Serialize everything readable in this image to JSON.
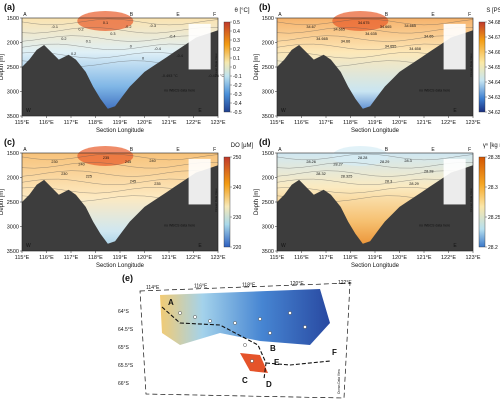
{
  "chart_data": [
    {
      "type": "heatmap",
      "panel_label": "(a)",
      "colorbar_title": "θ [°C]",
      "colorbar_ticks": [
        "0.5",
        "0.4",
        "0.3",
        "0.2",
        "0.1",
        "0",
        "-0.1",
        "-0.2",
        "-0.3",
        "-0.4",
        "-0.5"
      ],
      "colorbar_range": [
        -0.5,
        0.5
      ],
      "ylabel": "Depth [m]",
      "xlabel": "Section Longitude",
      "x_ticks": [
        "115°E",
        "116°E",
        "117°E",
        "118°E",
        "119°E",
        "120°E",
        "121°E",
        "122°E",
        "123°E"
      ],
      "y_ticks": [
        "1500",
        "2000",
        "2500",
        "3000",
        "3500"
      ],
      "section_letters": [
        "A",
        "B",
        "E",
        "F"
      ],
      "corner_labels": [
        "W",
        "E"
      ],
      "contour_labels": [
        "-0.1",
        "0.2",
        "0.1",
        "-0.2",
        "-0.3",
        "0.2",
        "0.1",
        "0",
        "-0.4",
        "-0.4",
        "0.3",
        "0",
        "-0.4",
        "0.2",
        "-0.493 °C",
        "-0.476 °C"
      ],
      "note": "no WBCS data here",
      "watermark": "Ocean Data View"
    },
    {
      "type": "heatmap",
      "panel_label": "(b)",
      "colorbar_title": "S [PSU]",
      "colorbar_ticks": [
        "34.68",
        "34.67",
        "34.66",
        "34.65",
        "34.64",
        "34.63",
        "34.62"
      ],
      "colorbar_range": [
        34.62,
        34.68
      ],
      "ylabel": "Depth [m]",
      "xlabel": "Section Longitude",
      "x_ticks": [
        "115°E",
        "116°E",
        "117°E",
        "118°E",
        "119°E",
        "120°E",
        "121°E",
        "122°E",
        "123°E"
      ],
      "y_ticks": [
        "1500",
        "2000",
        "2500",
        "3000",
        "3500"
      ],
      "section_letters": [
        "A",
        "B",
        "E",
        "F"
      ],
      "corner_labels": [
        "W",
        "E"
      ],
      "contour_labels": [
        "34.67",
        "34.665",
        "34.675",
        "34.665",
        "34.665",
        "34.665",
        "34.66",
        "34.655",
        "34.658",
        "34.65",
        "34.635"
      ],
      "note": "no WBCS data here",
      "watermark": "Ocean Data View"
    },
    {
      "type": "heatmap",
      "panel_label": "(c)",
      "colorbar_title": "DO [μM]",
      "colorbar_ticks": [
        "250",
        "240",
        "230",
        "220"
      ],
      "colorbar_range": [
        220,
        250
      ],
      "ylabel": "Depth [m]",
      "xlabel": "Section Longitude",
      "x_ticks": [
        "115°E",
        "116°E",
        "117°E",
        "118°E",
        "119°E",
        "120°E",
        "121°E",
        "122°E",
        "123°E"
      ],
      "y_ticks": [
        "1500",
        "2000",
        "2500",
        "3000",
        "3500"
      ],
      "section_letters": [
        "A",
        "B",
        "E",
        "F"
      ],
      "corner_labels": [
        "W",
        "E"
      ],
      "contour_labels": [
        "230",
        "240",
        "235",
        "245",
        "240",
        "230",
        "225",
        "245",
        "235"
      ],
      "note": "no WBCS data here",
      "watermark": "Ocean Data View"
    },
    {
      "type": "heatmap",
      "panel_label": "(d)",
      "colorbar_title": "γⁿ [kg m⁻³]",
      "colorbar_ticks": [
        "28.35",
        "28.3",
        "28.25",
        "28.2"
      ],
      "colorbar_range": [
        28.2,
        28.35
      ],
      "ylabel": "Depth [m]",
      "xlabel": "Section Longitude",
      "x_ticks": [
        "115°E",
        "116°E",
        "117°E",
        "118°E",
        "119°E",
        "120°E",
        "121°E",
        "122°E",
        "123°E"
      ],
      "y_ticks": [
        "1500",
        "2000",
        "2500",
        "3000",
        "3500"
      ],
      "section_letters": [
        "A",
        "B",
        "E",
        "F"
      ],
      "corner_labels": [
        "W",
        "E"
      ],
      "contour_labels": [
        "28.26",
        "28.27",
        "28.28",
        "28.29",
        "28.3",
        "28.32",
        "28.325",
        "28.3",
        "28.29",
        "28.28"
      ],
      "note": "no WBCS data here",
      "watermark": "Ocean Data View"
    }
  ],
  "map": {
    "panel_label": "(e)",
    "lon_ticks": [
      "114°E",
      "116°E",
      "118°E",
      "120°E",
      "122°E"
    ],
    "lat_ticks": [
      "64°S",
      "64.5°S",
      "65°S",
      "65.5°S",
      "66°S"
    ],
    "station_letters": [
      "A",
      "B",
      "C",
      "D",
      "E",
      "F"
    ],
    "watermark": "Ocean Data View"
  }
}
